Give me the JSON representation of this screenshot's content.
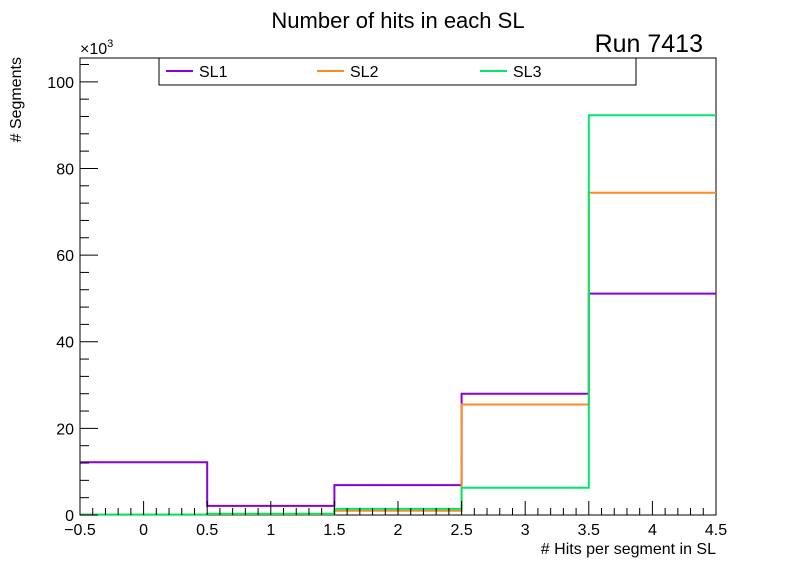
{
  "chart_data": {
    "type": "histogram-step",
    "title": "Number of hits in each SL",
    "run_label": "Run 7413",
    "xlabel": "# Hits per segment in SL",
    "ylabel": "# Segments",
    "y_multiplier": "×10",
    "y_multiplier_exp": "3",
    "xlim": [
      -0.5,
      4.5
    ],
    "ylim": [
      0,
      105.5
    ],
    "x_ticks": [
      -0.5,
      0,
      0.5,
      1,
      1.5,
      2,
      2.5,
      3,
      3.5,
      4,
      4.5
    ],
    "x_tick_labels": [
      "−0.5",
      "0",
      "0.5",
      "1",
      "1.5",
      "2",
      "2.5",
      "3",
      "3.5",
      "4",
      "4.5"
    ],
    "y_ticks": [
      0,
      20,
      40,
      60,
      80,
      100
    ],
    "y_tick_labels": [
      "0",
      "20",
      "40",
      "60",
      "80",
      "100"
    ],
    "bin_edges": [
      -0.5,
      0.5,
      1.5,
      2.5,
      3.5,
      4.5
    ],
    "legend_position": "top",
    "series": [
      {
        "name": "SL1",
        "color": "#8800e0",
        "values": [
          12.2,
          2.1,
          6.9,
          28.0,
          51.1
        ]
      },
      {
        "name": "SL2",
        "color": "#ff8a1f",
        "values": [
          0.1,
          0.2,
          1.0,
          25.5,
          74.4
        ]
      },
      {
        "name": "SL3",
        "color": "#00e86a",
        "values": [
          0.1,
          0.3,
          1.4,
          6.3,
          92.3
        ]
      }
    ]
  }
}
